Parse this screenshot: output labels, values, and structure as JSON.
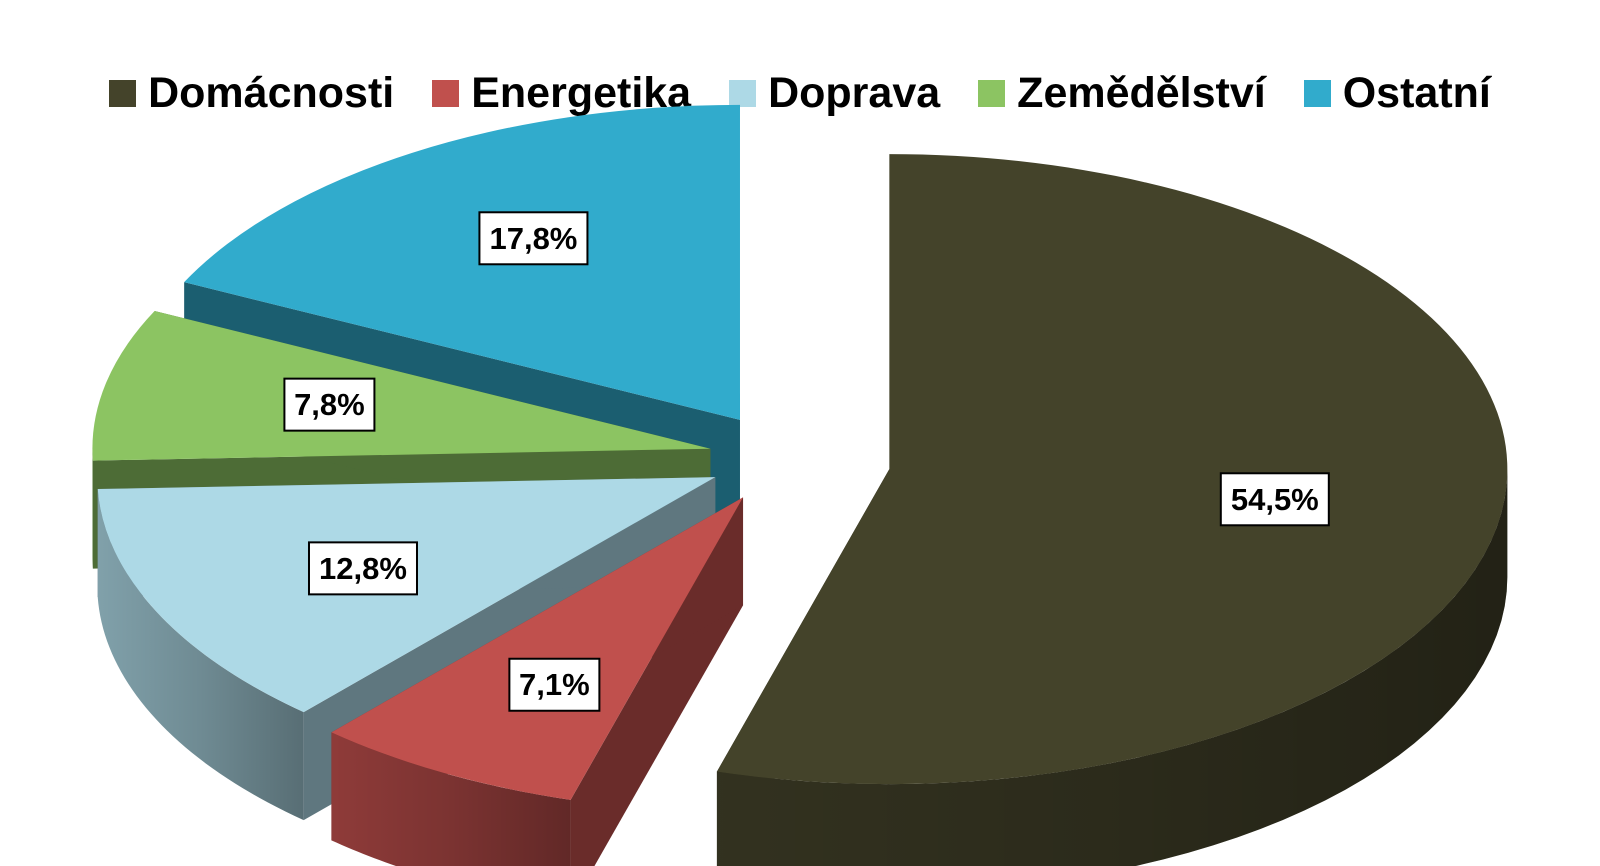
{
  "chart_data": {
    "type": "pie",
    "style": "3d-exploded",
    "legend_position": "top",
    "categories": [
      "Domácnosti",
      "Energetika",
      "Doprava",
      "Zemědělství",
      "Ostatní"
    ],
    "values": [
      54.5,
      7.1,
      12.8,
      7.8,
      17.8
    ],
    "labels": [
      "54,5%",
      "7,1%",
      "12,8%",
      "7,8%",
      "17,8%"
    ],
    "colors": [
      "#44432a",
      "#c0504d",
      "#add9e6",
      "#8cc462",
      "#31abcc"
    ],
    "title": ""
  }
}
